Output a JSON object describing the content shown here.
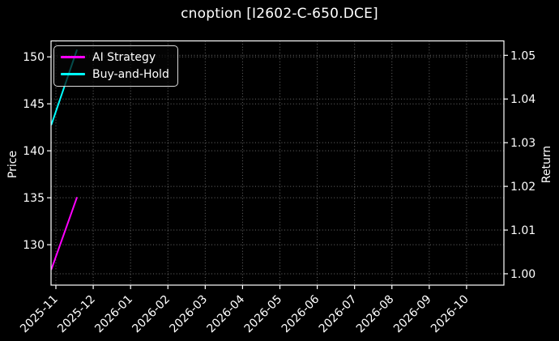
{
  "figure": {
    "background": "#000000",
    "text_color": "#ffffff",
    "axes_color": "#ffffff"
  },
  "chart_data": {
    "type": "line",
    "title": "cnoption [I2602-C-650.DCE]",
    "ylabel_left": "Price",
    "ylabel_right": "Return",
    "x_tick_labels": [
      "2025-11",
      "2025-12",
      "2026-01",
      "2026-02",
      "2026-03",
      "2026-04",
      "2026-05",
      "2026-06",
      "2026-07",
      "2026-08",
      "2026-09",
      "2026-10"
    ],
    "x_unit": "months from 2025-11 tick",
    "xlim_months": [
      -0.13,
      12.0
    ],
    "y_left_ticks": [
      130,
      135,
      140,
      145,
      150
    ],
    "ylim_left": [
      125.7,
      151.7
    ],
    "y_right_ticks": [
      1.0,
      1.01,
      1.02,
      1.03,
      1.04,
      1.05
    ],
    "y_right_tick_labels": [
      "1.00",
      "1.01",
      "1.02",
      "1.03",
      "1.04",
      "1.05"
    ],
    "ylim_right": [
      0.9974,
      1.0533
    ],
    "grid": {
      "show": true,
      "linestyle": "dotted",
      "color": "rgba(255,255,255,0.42)"
    },
    "legend": {
      "position": "upper-left",
      "entries": [
        {
          "label": "AI Strategy",
          "color": "#ff00ff"
        },
        {
          "label": "Buy-and-Hold",
          "color": "#00ffff"
        }
      ]
    },
    "series": [
      {
        "name": "AI Strategy",
        "color": "#ff00ff",
        "axis": "left",
        "linewidth": 2,
        "points": [
          {
            "x": -0.12,
            "y": 127.4
          },
          {
            "x": 0.56,
            "y": 135.0
          }
        ]
      },
      {
        "name": "Buy-and-Hold",
        "color": "#00ffff",
        "axis": "left",
        "linewidth": 2,
        "points": [
          {
            "x": -0.12,
            "y": 142.8
          },
          {
            "x": 0.56,
            "y": 150.7
          }
        ]
      }
    ]
  }
}
